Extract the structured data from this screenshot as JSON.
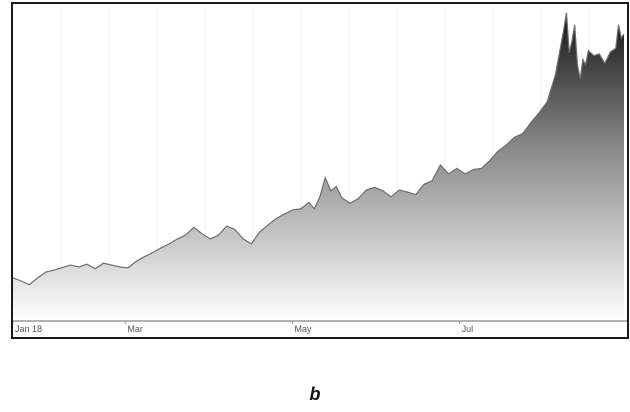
{
  "panel_label": "b",
  "colors": {
    "line": "#6e6e6e",
    "area_top": "#141414",
    "area_bottom": "#ffffff",
    "grid": "#f1f1f1",
    "axis": "#999999"
  },
  "chart_data": {
    "type": "area",
    "title": "",
    "xlabel": "",
    "ylabel": "",
    "x_ticks": [
      {
        "label": "Jan 18",
        "day": 0
      },
      {
        "label": "Mar",
        "day": 41
      },
      {
        "label": "May",
        "day": 102
      },
      {
        "label": "Jul",
        "day": 163
      }
    ],
    "x_range": [
      0,
      223
    ],
    "ylim": [
      0,
      100
    ],
    "grid": true,
    "legend": "none",
    "series": [
      {
        "x": [
          0,
          3,
          6,
          9,
          12,
          15,
          18,
          21,
          24,
          27,
          30,
          33,
          36,
          39,
          42,
          45,
          48,
          51,
          54,
          57,
          60,
          63,
          66,
          69,
          72,
          75,
          78,
          81,
          84,
          87,
          90,
          93,
          96,
          99,
          102,
          105,
          108,
          110,
          112,
          114,
          116,
          118,
          120,
          123,
          126,
          129,
          132,
          135,
          138,
          141,
          144,
          147,
          150,
          153,
          156,
          159,
          162,
          165,
          168,
          171,
          174,
          177,
          180,
          183,
          186,
          189,
          192,
          195,
          198,
          201,
          202,
          203,
          204,
          205,
          206,
          207,
          208,
          209,
          210,
          212,
          214,
          216,
          218,
          220,
          221,
          222,
          223
        ],
        "y": [
          13.5,
          12.5,
          11.3,
          13.5,
          15.4,
          16.0,
          16.8,
          17.6,
          17.0,
          17.9,
          16.4,
          18.2,
          17.6,
          17.0,
          16.7,
          18.8,
          20.3,
          21.6,
          23.1,
          24.4,
          26.0,
          27.2,
          29.7,
          27.6,
          26.0,
          27.2,
          30.1,
          29.0,
          26.0,
          24.4,
          28.2,
          30.4,
          32.5,
          33.9,
          35.3,
          35.6,
          37.7,
          35.6,
          39.5,
          45.6,
          41.4,
          42.8,
          39.2,
          37.4,
          38.9,
          41.7,
          42.5,
          41.4,
          39.5,
          41.7,
          41.0,
          40.2,
          43.5,
          44.6,
          49.7,
          46.8,
          48.6,
          46.8,
          48.2,
          48.6,
          51.1,
          54.1,
          56.1,
          58.6,
          59.7,
          63.2,
          66.4,
          70.0,
          78.7,
          93.0,
          98.5,
          85.7,
          89.3,
          94.6,
          81.8,
          77.2,
          83.5,
          81.8,
          86.3,
          84.7,
          85.3,
          82.2,
          85.9,
          87.1,
          94.6,
          90.4,
          91.7
        ]
      }
    ]
  }
}
